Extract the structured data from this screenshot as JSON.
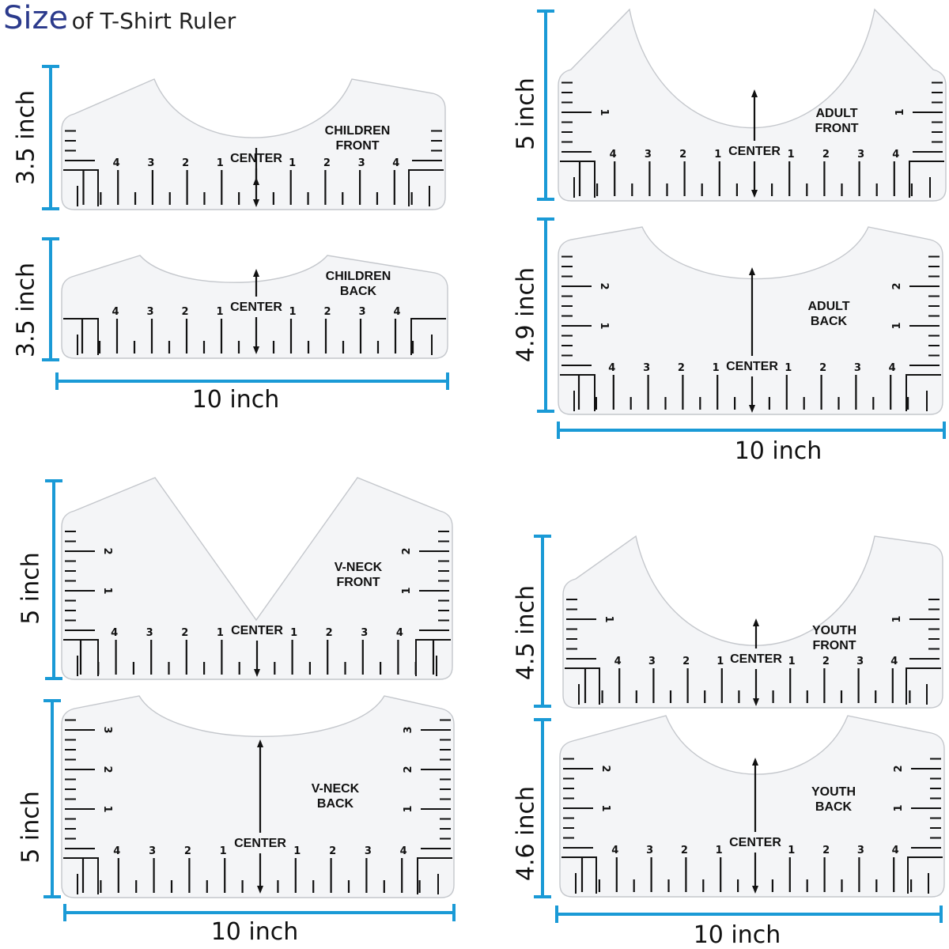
{
  "title": {
    "big": "Size",
    "small": "of T-Shirt Ruler"
  },
  "colors": {
    "accent": "#1a9ad6",
    "ruler_fill": "#f4f5f7",
    "ruler_outline": "#c4c7cc",
    "ink": "#111111"
  },
  "center_label": "CENTER",
  "numbers": [
    "1",
    "2",
    "3",
    "4"
  ],
  "rulers": [
    {
      "id": "children-front",
      "line1": "CHILDREN",
      "line2": "FRONT",
      "neck": "scoop"
    },
    {
      "id": "children-back",
      "line1": "CHILDREN",
      "line2": "BACK",
      "neck": "shallow"
    },
    {
      "id": "adult-front",
      "line1": "ADULT",
      "line2": "FRONT",
      "neck": "scoop"
    },
    {
      "id": "adult-back",
      "line1": "ADULT",
      "line2": "BACK",
      "neck": "shallow"
    },
    {
      "id": "v-neck-front",
      "line1": "V-NECK",
      "line2": "FRONT",
      "neck": "v"
    },
    {
      "id": "v-neck-back",
      "line1": "V-NECK",
      "line2": "BACK",
      "neck": "shallow"
    },
    {
      "id": "youth-front",
      "line1": "YOUTH",
      "line2": "FRONT",
      "neck": "scoop"
    },
    {
      "id": "youth-back",
      "line1": "YOUTH",
      "line2": "BACK",
      "neck": "shallow"
    }
  ],
  "dimensions": [
    {
      "id": "children-front-height",
      "label": "3.5 inch"
    },
    {
      "id": "children-back-height",
      "label": "3.5 inch"
    },
    {
      "id": "children-width",
      "label": "10 inch"
    },
    {
      "id": "adult-front-height",
      "label": "5 inch"
    },
    {
      "id": "adult-back-height",
      "label": "4.9 inch"
    },
    {
      "id": "adult-width",
      "label": "10 inch"
    },
    {
      "id": "v-neck-front-height",
      "label": "5 inch"
    },
    {
      "id": "v-neck-back-height",
      "label": "5 inch"
    },
    {
      "id": "v-neck-width",
      "label": "10 inch"
    },
    {
      "id": "youth-front-height",
      "label": "4.5 inch"
    },
    {
      "id": "youth-back-height",
      "label": "4.6 inch"
    },
    {
      "id": "youth-width",
      "label": "10 inch"
    }
  ]
}
